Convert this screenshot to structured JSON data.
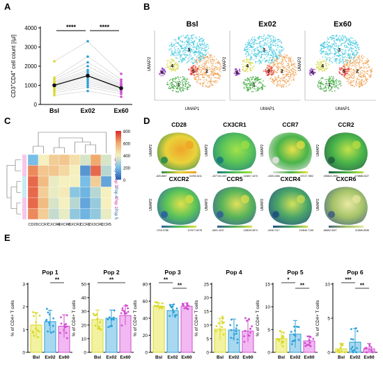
{
  "colors": {
    "bsl": "#d9d92a",
    "ex02": "#2aa0d6",
    "ex60": "#d04fd0",
    "bsl_fill": "#f2f2a0",
    "ex02_fill": "#a8d8f0",
    "ex60_fill": "#f2b8f2",
    "cluster1": "#3aa83a",
    "cluster2": "#f0a050",
    "cluster3": "#40c8e0",
    "cluster4": "#d8d850",
    "cluster5": "#e83030",
    "cluster6": "#9030c0"
  },
  "panels": {
    "a": {
      "label": "A"
    },
    "b": {
      "label": "B"
    },
    "c": {
      "label": "C"
    },
    "d": {
      "label": "D"
    },
    "e": {
      "label": "E"
    }
  },
  "umap_axis": {
    "x": "UMAP1",
    "y": "UMAP2"
  },
  "significance": {
    "four": "****",
    "three": "***",
    "two": "**",
    "one": "*"
  },
  "cluster_labels": [
    "1",
    "2",
    "3",
    "4",
    "5",
    "6"
  ],
  "chart_data": [
    {
      "id": "A",
      "type": "scatter",
      "title": "",
      "ylabel": "CD3+CD4+ cell count [/µl]",
      "ylabel_parts": {
        "pre": "CD3",
        "sup1": "+",
        "mid": "CD4",
        "sup2": "+",
        "post": " cell count [/µl]"
      },
      "categories": [
        "Bsl",
        "Ex02",
        "Ex60"
      ],
      "ylim": [
        0,
        4000
      ],
      "yticks": [
        "0",
        "1000",
        "2000",
        "3000",
        "4000"
      ],
      "means": [
        1000,
        1500,
        850
      ],
      "points": {
        "Bsl": [
          480,
          600,
          700,
          780,
          850,
          900,
          950,
          1000,
          1050,
          1100,
          1150,
          1200,
          1300,
          1400,
          2250
        ],
        "Ex02": [
          700,
          900,
          1000,
          1100,
          1200,
          1300,
          1400,
          1500,
          1600,
          1700,
          1800,
          2000,
          2200,
          2500,
          3300
        ],
        "Ex60": [
          400,
          550,
          650,
          700,
          750,
          800,
          850,
          900,
          950,
          1000,
          1050,
          1100,
          1200,
          1300,
          1600
        ]
      },
      "brackets": [
        {
          "from": 0,
          "to": 1,
          "text": "****"
        },
        {
          "from": 1,
          "to": 2,
          "text": "****"
        }
      ]
    },
    {
      "id": "B",
      "type": "scatter",
      "panels": [
        "Bsl",
        "Ex02",
        "Ex60"
      ]
    },
    {
      "id": "C",
      "type": "heatmap",
      "columns": [
        "CD28",
        "CCR7",
        "CXCR4",
        "CXCR6",
        "CXCR2",
        "CCR2",
        "CX3CR1",
        "CCR5"
      ],
      "rows": [
        "Pop 6",
        "Pop 2",
        "Pop 3",
        "Pop 4",
        "Pop 1",
        "Pop 5"
      ],
      "scale": {
        "min": 0,
        "max": 800,
        "ticks": [
          "800",
          "600",
          "400",
          "200",
          "0"
        ]
      },
      "values": [
        [
          200,
          400,
          500,
          520,
          450,
          350,
          600,
          350
        ],
        [
          650,
          520,
          520,
          470,
          400,
          120,
          700,
          300
        ],
        [
          700,
          550,
          380,
          400,
          400,
          200,
          500,
          150
        ],
        [
          700,
          500,
          380,
          420,
          230,
          180,
          300,
          400
        ],
        [
          700,
          550,
          350,
          400,
          300,
          150,
          250,
          400
        ],
        [
          650,
          500,
          320,
          380,
          240,
          180,
          240,
          380
        ]
      ]
    },
    {
      "id": "D",
      "type": "heatmap",
      "markers": [
        {
          "name": "CD28",
          "min": "-825.8697",
          "max": "41993.3411"
        },
        {
          "name": "CX3CR1",
          "min": "-157740.1307",
          "max": "163807.1670"
        },
        {
          "name": "CCR7",
          "min": "-1009.2456",
          "max": "57217.7892"
        },
        {
          "name": "CCR2",
          "min": "-908822.2597",
          "max": "479888.0027"
        },
        {
          "name": "CXCR2",
          "min": "-7215.3788",
          "max": "107677.8278"
        },
        {
          "name": "CCR5",
          "min": "-3601.4247",
          "max": "128029.9674"
        },
        {
          "name": "CXCR4",
          "min": "-4036.7117",
          "max": "219640.7135"
        },
        {
          "name": "CXCR6",
          "min": "-86652.3027",
          "max": "112660.8936"
        }
      ]
    },
    {
      "id": "E",
      "type": "bar",
      "categories": [
        "Bsl",
        "Ex02",
        "Ex60"
      ],
      "ylabel": "% of CD4+ T cells",
      "subplots": [
        {
          "title": "Pop 1",
          "ylim": [
            0,
            3
          ],
          "yticks": [
            "0",
            "1",
            "2",
            "3"
          ],
          "values": [
            1.2,
            1.35,
            1.15
          ],
          "sd": [
            0.55,
            0.5,
            0.5
          ],
          "brackets": [
            {
              "from": 1,
              "to": 2,
              "text": "**"
            }
          ]
        },
        {
          "title": "Pop 2",
          "ylim": [
            0,
            50
          ],
          "yticks": [
            "0",
            "10",
            "20",
            "30",
            "40",
            "50"
          ],
          "values": [
            24,
            25,
            27
          ],
          "sd": [
            7,
            6,
            7
          ],
          "brackets": [
            {
              "from": 0,
              "to": 2,
              "text": "**"
            }
          ]
        },
        {
          "title": "Pop 3",
          "ylim": [
            0,
            80
          ],
          "yticks": [
            "0",
            "20",
            "40",
            "60",
            "80"
          ],
          "values": [
            54,
            49,
            54
          ],
          "sd": [
            4,
            7,
            4
          ],
          "brackets": [
            {
              "from": 0,
              "to": 1,
              "text": "**"
            },
            {
              "from": 1,
              "to": 2,
              "text": "**"
            }
          ]
        },
        {
          "title": "Pop 4",
          "ylim": [
            0,
            25
          ],
          "yticks": [
            "0",
            "5",
            "10",
            "15",
            "20",
            "25"
          ],
          "values": [
            8.5,
            8.2,
            7.8
          ],
          "sd": [
            4,
            4,
            4
          ],
          "brackets": []
        },
        {
          "title": "Pop 5",
          "ylim": [
            0,
            15
          ],
          "yticks": [
            "0",
            "5",
            "10",
            "15"
          ],
          "values": [
            3,
            4,
            2.5
          ],
          "sd": [
            1.5,
            3,
            1
          ],
          "brackets": [
            {
              "from": 0,
              "to": 1,
              "text": "*"
            },
            {
              "from": 1,
              "to": 2,
              "text": "**"
            }
          ]
        },
        {
          "title": "Pop 6",
          "ylim": [
            0,
            10
          ],
          "yticks": [
            "0",
            "5",
            "10"
          ],
          "values": [
            0.5,
            1.5,
            0.5
          ],
          "sd": [
            0.8,
            2,
            0.8
          ],
          "brackets": [
            {
              "from": 0,
              "to": 1,
              "text": "***"
            },
            {
              "from": 1,
              "to": 2,
              "text": "**"
            }
          ]
        }
      ]
    }
  ]
}
